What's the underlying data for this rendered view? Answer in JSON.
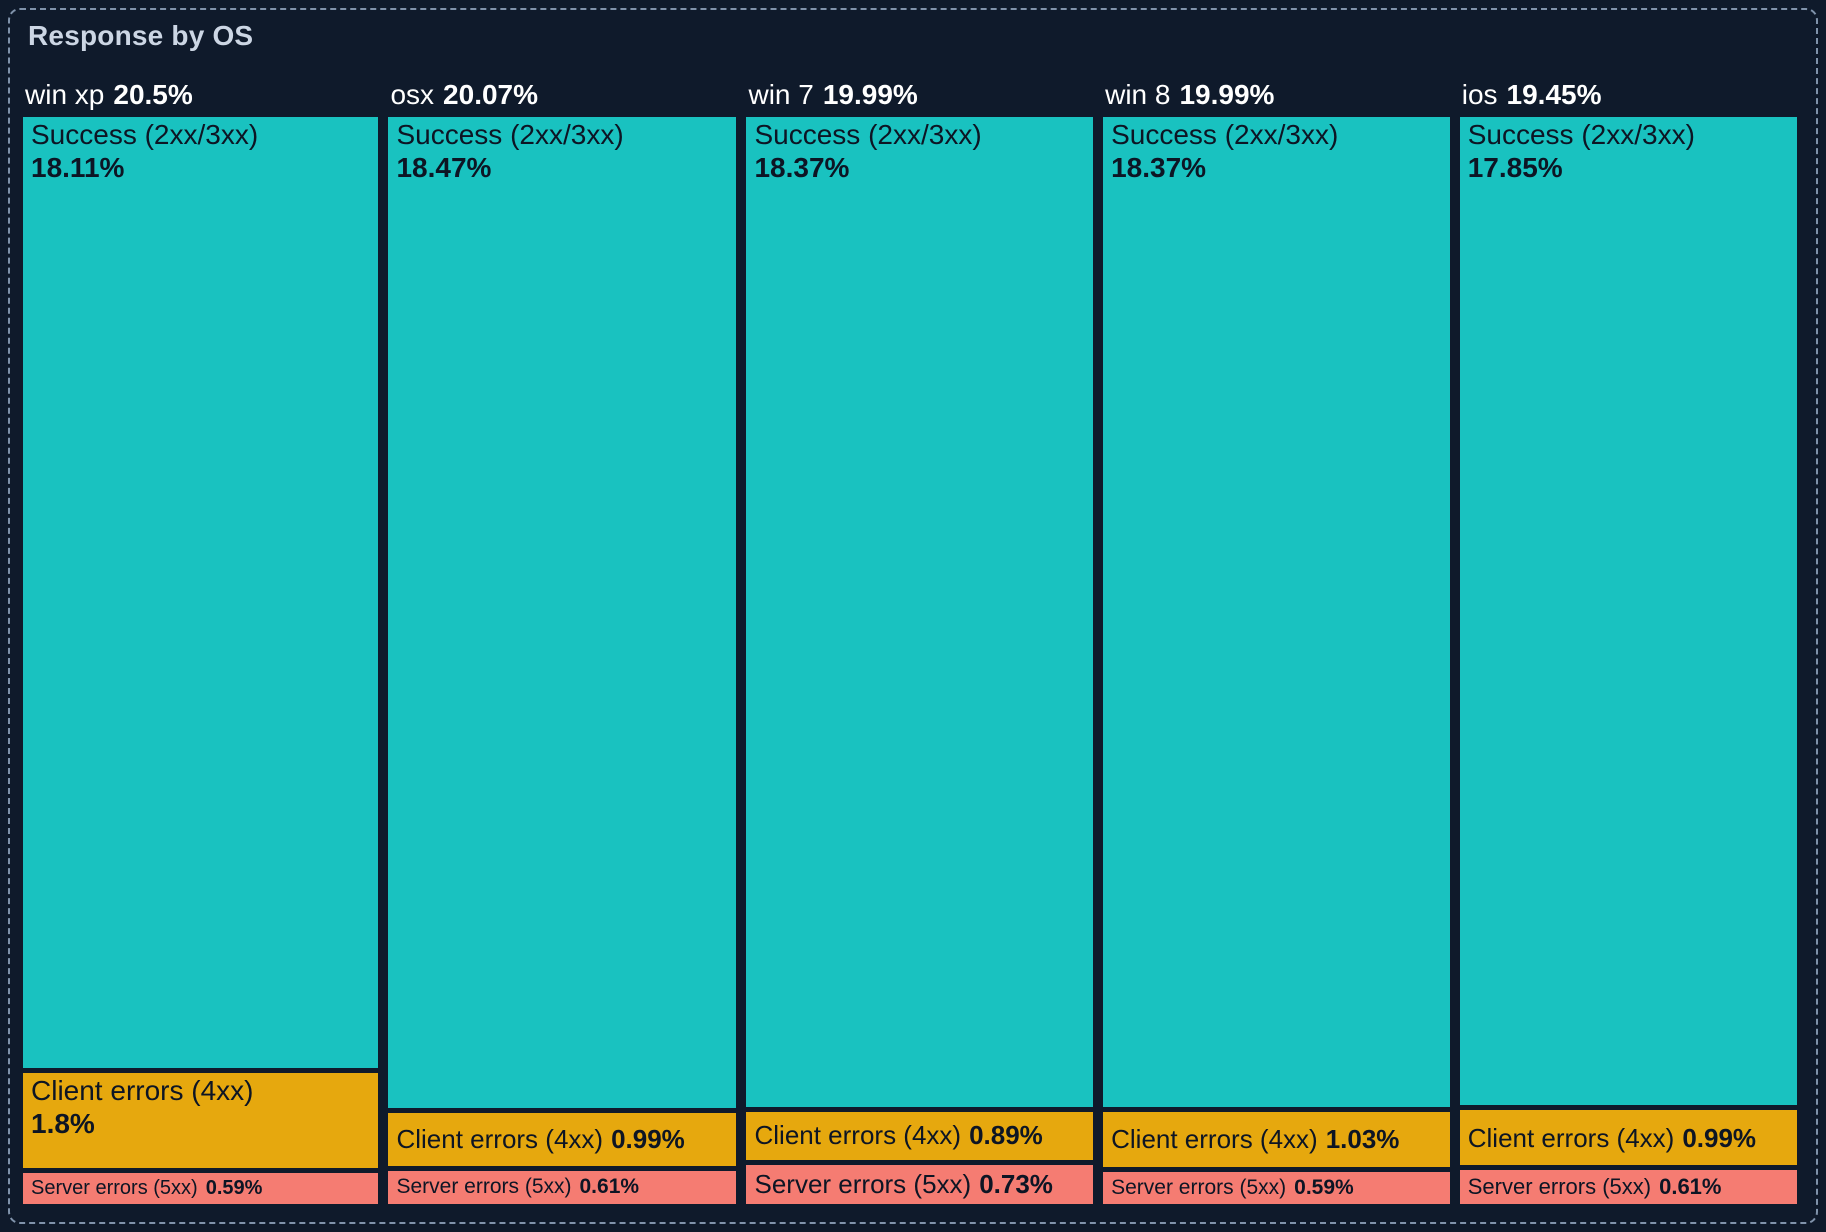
{
  "title": "Response by OS",
  "colors": {
    "background": "#0f1a2b",
    "panel_border": "#8093ab",
    "title_text": "#ccd6e4",
    "header_text": "#ffffff",
    "segment_text": "#0d1524",
    "success": "#19c2c0",
    "client_errors": "#e6a80e",
    "server_errors": "#f57c72"
  },
  "chart_data": {
    "type": "bar",
    "variant": "marimekko-treemap (100% stacked columns, width proportional to category total)",
    "title": "Response by OS",
    "categories": [
      "win xp",
      "osx",
      "win 7",
      "win 8",
      "ios"
    ],
    "totals": [
      20.5,
      20.07,
      19.99,
      19.99,
      19.45
    ],
    "series": [
      {
        "name": "Success (2xx/3xx)",
        "color_key": "success",
        "values": [
          18.11,
          18.47,
          18.37,
          18.37,
          17.85
        ]
      },
      {
        "name": "Client errors (4xx)",
        "color_key": "client_errors",
        "values": [
          1.8,
          0.99,
          0.89,
          1.03,
          0.99
        ]
      },
      {
        "name": "Server errors (5xx)",
        "color_key": "server_errors",
        "values": [
          0.59,
          0.61,
          0.73,
          0.59,
          0.61
        ]
      }
    ],
    "value_suffix": "%",
    "legend": "none",
    "axes": "none",
    "labels_inside_segments": true
  }
}
